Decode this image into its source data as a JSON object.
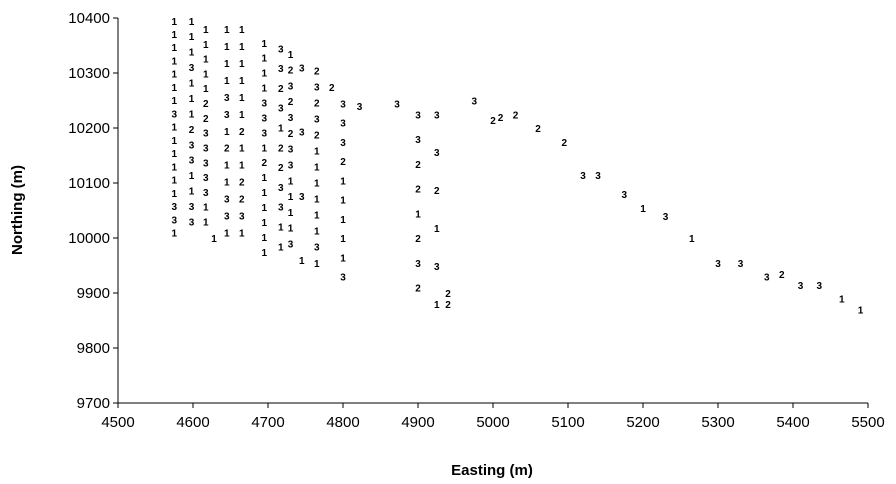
{
  "chart_data": {
    "type": "scatter",
    "title": "",
    "xlabel": "Easting (m)",
    "ylabel": "Northing (m)",
    "xlim": [
      4500,
      5500
    ],
    "ylim": [
      9700,
      10400
    ],
    "xticks": [
      "4500",
      "4600",
      "4700",
      "4800",
      "4900",
      "5000",
      "5100",
      "5200",
      "5300",
      "5400",
      "5500"
    ],
    "yticks": [
      "9700",
      "9800",
      "9900",
      "10000",
      "10100",
      "10200",
      "10300",
      "10400"
    ],
    "grid": false,
    "legend": "none",
    "marker": "text label (class code 1, 2 or 3)",
    "columns": [
      {
        "x": 4575,
        "labels": "11111113111111331",
        "y_top": 10395,
        "y_bottom": 10010
      },
      {
        "x": 4598,
        "labels": "11131112331133",
        "y_top": 10395,
        "y_bottom": 10030
      },
      {
        "x": 4617,
        "labels": "11111223333311",
        "y_top": 10380,
        "y_bottom": 10030
      },
      {
        "x": 4628,
        "labels": "1",
        "y_top": 10000,
        "y_bottom": 10000
      },
      {
        "x": 4645,
        "labels": "1111331211331",
        "y_top": 10380,
        "y_bottom": 10010
      },
      {
        "x": 4665,
        "labels": "1111112112231",
        "y_top": 10380,
        "y_bottom": 10010
      },
      {
        "x": 4695,
        "labels": "111133312111111",
        "y_top": 10355,
        "y_bottom": 9975
      },
      {
        "x": 4717,
        "labels": "33231223311",
        "y_top": 10345,
        "y_bottom": 9985
      },
      {
        "x": 4730,
        "labels": "1232323311113",
        "y_top": 10335,
        "y_bottom": 9990
      },
      {
        "x": 4745,
        "labels": "3331",
        "y_top": 10310,
        "y_bottom": 9960
      },
      {
        "x": 4765,
        "labels": "2323211111131",
        "y_top": 10305,
        "y_bottom": 9955
      },
      {
        "x": 4785,
        "labels": "2",
        "y_top": 10275,
        "y_bottom": 9930
      },
      {
        "x": 4800,
        "labels": "3332111113",
        "y_top": 10245,
        "y_bottom": 9930
      },
      {
        "x": 4822,
        "labels": "3",
        "y_top": 10240,
        "y_bottom": 9945
      },
      {
        "x": 4872,
        "labels": "3",
        "y_top": 10245,
        "y_bottom": 9895
      },
      {
        "x": 4900,
        "labels": "33221232",
        "y_top": 10225,
        "y_bottom": 9910
      },
      {
        "x": 4925,
        "labels": "332131",
        "y_top": 10225,
        "y_bottom": 9880
      },
      {
        "x": 4940,
        "labels": "22",
        "y_top": 9900,
        "y_bottom": 9880
      },
      {
        "x": 4975,
        "labels": "3",
        "y_top": 10250,
        "y_bottom": 9880
      },
      {
        "x": 5000,
        "labels": "2",
        "y_top": 10215,
        "y_bottom": 9860
      },
      {
        "x": 5010,
        "labels": "2",
        "y_top": 10220,
        "y_bottom": 9860
      },
      {
        "x": 5030,
        "labels": "2",
        "y_top": 10225,
        "y_bottom": 9830
      },
      {
        "x": 5060,
        "labels": "2",
        "y_top": 10200,
        "y_bottom": 9840
      },
      {
        "x": 5095,
        "labels": "2",
        "y_top": 10175,
        "y_bottom": 9840
      },
      {
        "x": 5120,
        "labels": "3",
        "y_top": 10115,
        "y_bottom": 9820
      },
      {
        "x": 5140,
        "labels": "3",
        "y_top": 10115,
        "y_bottom": 9790
      },
      {
        "x": 5175,
        "labels": "3",
        "y_top": 10080,
        "y_bottom": 9770
      },
      {
        "x": 5200,
        "labels": "1",
        "y_top": 10055,
        "y_bottom": 9790
      },
      {
        "x": 5230,
        "labels": "3",
        "y_top": 10040,
        "y_bottom": 9760
      },
      {
        "x": 5265,
        "labels": "1",
        "y_top": 10000,
        "y_bottom": 9720
      },
      {
        "x": 5300,
        "labels": "3",
        "y_top": 9955,
        "y_bottom": 9730
      },
      {
        "x": 5330,
        "labels": "3",
        "y_top": 9955,
        "y_bottom": 9750
      },
      {
        "x": 5365,
        "labels": "3",
        "y_top": 9930,
        "y_bottom": 9775
      },
      {
        "x": 5385,
        "labels": "2",
        "y_top": 9935,
        "y_bottom": 9820
      },
      {
        "x": 5410,
        "labels": "3",
        "y_top": 9915,
        "y_bottom": 9850
      },
      {
        "x": 5435,
        "labels": "3",
        "y_top": 9915,
        "y_bottom": 9835
      },
      {
        "x": 5465,
        "labels": "1",
        "y_top": 9890,
        "y_bottom": 9890
      },
      {
        "x": 5490,
        "labels": "1",
        "y_top": 9870,
        "y_bottom": 9870
      }
    ]
  }
}
